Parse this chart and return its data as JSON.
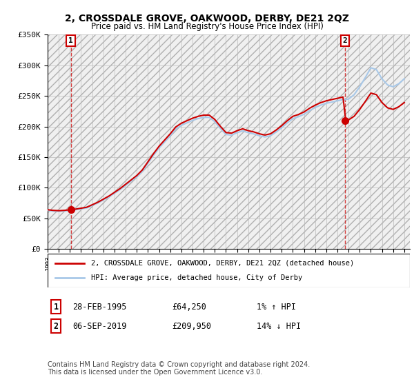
{
  "title": "2, CROSSDALE GROVE, OAKWOOD, DERBY, DE21 2QZ",
  "subtitle": "Price paid vs. HM Land Registry's House Price Index (HPI)",
  "sale1_price": 64250,
  "sale2_price": 209950,
  "ylim": [
    0,
    350000
  ],
  "yticks": [
    0,
    50000,
    100000,
    150000,
    200000,
    250000,
    300000,
    350000
  ],
  "ytick_labels": [
    "£0",
    "£50K",
    "£100K",
    "£150K",
    "£200K",
    "£250K",
    "£300K",
    "£350K"
  ],
  "hpi_color": "#a8c8e8",
  "price_color": "#cc0000",
  "legend_label1": "2, CROSSDALE GROVE, OAKWOOD, DERBY, DE21 2QZ (detached house)",
  "legend_label2": "HPI: Average price, detached house, City of Derby",
  "table_row1": "28-FEB-1995",
  "table_price1": "£64,250",
  "table_pct1": "1% ↑ HPI",
  "table_row2": "06-SEP-2019",
  "table_price2": "£209,950",
  "table_pct2": "14% ↓ HPI",
  "footnote": "Contains HM Land Registry data © Crown copyright and database right 2024.\nThis data is licensed under the Open Government Licence v3.0.",
  "xlim_start": 1993.0,
  "xlim_end": 2025.5,
  "sale1_year": 1995.083,
  "sale2_year": 2019.667,
  "hpi_years": [
    1993,
    1993.5,
    1994,
    1994.5,
    1995,
    1995.5,
    1996,
    1996.5,
    1997,
    1997.5,
    1998,
    1998.5,
    1999,
    1999.5,
    2000,
    2000.5,
    2001,
    2001.5,
    2002,
    2002.5,
    2003,
    2003.5,
    2004,
    2004.5,
    2005,
    2005.5,
    2006,
    2006.5,
    2007,
    2007.5,
    2008,
    2008.5,
    2009,
    2009.5,
    2010,
    2010.5,
    2011,
    2011.5,
    2012,
    2012.5,
    2013,
    2013.5,
    2014,
    2014.5,
    2015,
    2015.5,
    2016,
    2016.5,
    2017,
    2017.5,
    2018,
    2018.5,
    2019,
    2019.25,
    2019.5,
    2019.75,
    2020,
    2020.5,
    2021,
    2021.5,
    2022,
    2022.5,
    2023,
    2023.5,
    2024,
    2024.5,
    2025
  ],
  "hpi_values": [
    63000,
    62000,
    61500,
    62000,
    63000,
    64000,
    65500,
    67000,
    71000,
    75000,
    80000,
    85000,
    91000,
    97000,
    104000,
    111000,
    118000,
    127000,
    140000,
    153000,
    165000,
    175000,
    185000,
    196000,
    202000,
    206000,
    210000,
    213000,
    215000,
    215000,
    208000,
    197000,
    187000,
    186000,
    190000,
    193000,
    190000,
    188000,
    185000,
    183000,
    185000,
    191000,
    198000,
    206000,
    213000,
    216000,
    220000,
    226000,
    231000,
    235000,
    238000,
    240000,
    242000,
    243000,
    244000,
    244000,
    245000,
    252000,
    265000,
    280000,
    296000,
    293000,
    278000,
    268000,
    265000,
    270000,
    278000
  ]
}
